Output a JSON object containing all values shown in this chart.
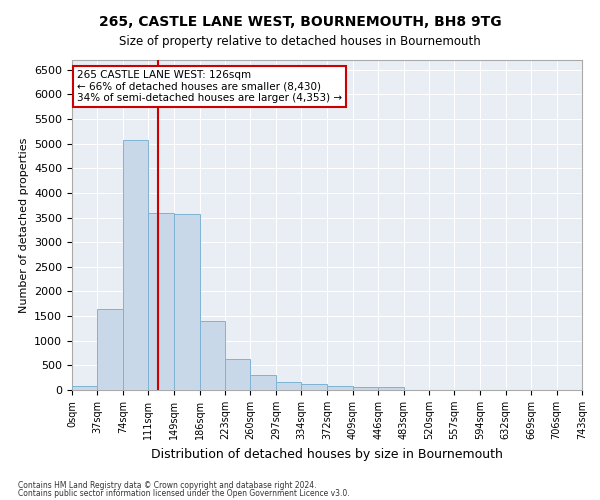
{
  "title": "265, CASTLE LANE WEST, BOURNEMOUTH, BH8 9TG",
  "subtitle": "Size of property relative to detached houses in Bournemouth",
  "xlabel": "Distribution of detached houses by size in Bournemouth",
  "ylabel": "Number of detached properties",
  "bar_color": "#c8d8e8",
  "bar_edge_color": "#7fb3d3",
  "fig_bg_color": "#ffffff",
  "plot_bg_color": "#e8eef4",
  "grid_color": "#ffffff",
  "vline_x": 126,
  "vline_color": "#cc0000",
  "annotation_title": "265 CASTLE LANE WEST: 126sqm",
  "annotation_line1": "← 66% of detached houses are smaller (8,430)",
  "annotation_line2": "34% of semi-detached houses are larger (4,353) →",
  "annotation_box_color": "#ffffff",
  "annotation_box_edge": "#cc0000",
  "bin_edges": [
    0,
    37,
    74,
    111,
    149,
    186,
    223,
    260,
    297,
    334,
    372,
    409,
    446,
    483,
    520,
    557,
    594,
    632,
    669,
    706,
    743
  ],
  "bin_counts": [
    75,
    1640,
    5080,
    3600,
    3580,
    1400,
    620,
    310,
    155,
    115,
    75,
    55,
    55,
    0,
    0,
    0,
    0,
    0,
    0,
    0
  ],
  "ylim": [
    0,
    6700
  ],
  "yticks": [
    0,
    500,
    1000,
    1500,
    2000,
    2500,
    3000,
    3500,
    4000,
    4500,
    5000,
    5500,
    6000,
    6500
  ],
  "footer1": "Contains HM Land Registry data © Crown copyright and database right 2024.",
  "footer2": "Contains public sector information licensed under the Open Government Licence v3.0."
}
